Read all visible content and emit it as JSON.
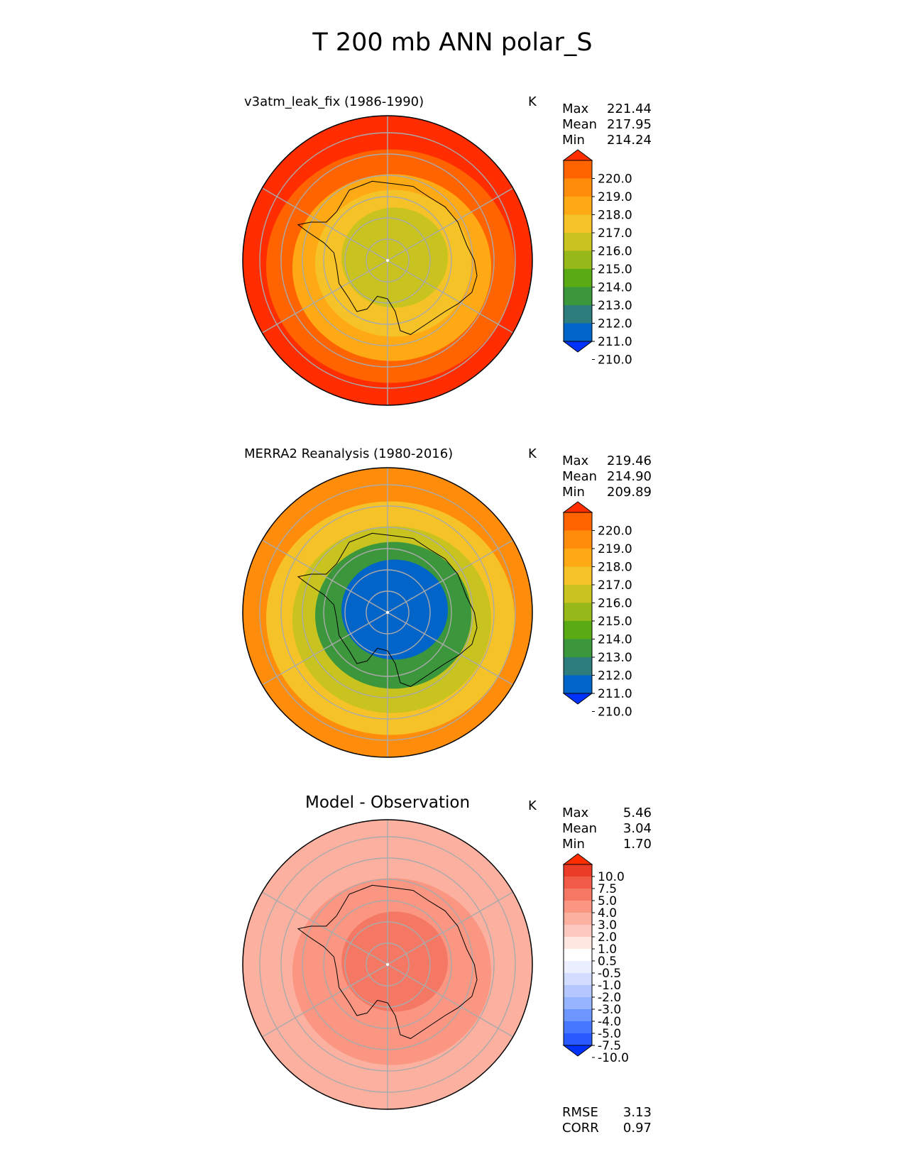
{
  "title": "T 200 mb ANN polar_S",
  "colors": {
    "temp_levels": [
      "#0032ff",
      "#0064c8",
      "#2d7d7d",
      "#3c963c",
      "#5aaa14",
      "#96b919",
      "#c8c31e",
      "#f5c328",
      "#ffaa14",
      "#ff8c0a",
      "#ff6400",
      "#ff2d00"
    ],
    "diff_levels": [
      "#0032ff",
      "#285aff",
      "#4678ff",
      "#6e96ff",
      "#96b4ff",
      "#b4c8ff",
      "#d2dcff",
      "#ebefff",
      "#ffffff",
      "#fee6e1",
      "#fdc8bd",
      "#fcb0a0",
      "#fa9682",
      "#f57864",
      "#f05a46",
      "#eb3c28",
      "#ff2d00"
    ],
    "coastline": "#000000",
    "grid": "#aaaaaa"
  },
  "panels": [
    {
      "title": "v3atm_leak_fix (1986-1990)",
      "units": "K",
      "stats": [
        {
          "label": "Max",
          "value": "221.44"
        },
        {
          "label": "Mean",
          "value": "217.95"
        },
        {
          "label": "Min",
          "value": "214.24"
        }
      ],
      "colorbar_ticks": [
        "220.0",
        "219.0",
        "218.0",
        "217.0",
        "216.0",
        "215.0",
        "214.0",
        "213.0",
        "212.0",
        "211.0",
        "210.0"
      ]
    },
    {
      "title": "MERRA2 Reanalysis (1980-2016)",
      "units": "K",
      "stats": [
        {
          "label": "Max",
          "value": "219.46"
        },
        {
          "label": "Mean",
          "value": "214.90"
        },
        {
          "label": "Min",
          "value": "209.89"
        }
      ],
      "colorbar_ticks": [
        "220.0",
        "219.0",
        "218.0",
        "217.0",
        "216.0",
        "215.0",
        "214.0",
        "213.0",
        "212.0",
        "211.0",
        "210.0"
      ]
    },
    {
      "title": "Model - Observation",
      "units": "K",
      "stats": [
        {
          "label": "Max",
          "value": "5.46"
        },
        {
          "label": "Mean",
          "value": "3.04"
        },
        {
          "label": "Min",
          "value": "1.70"
        }
      ],
      "colorbar_ticks": [
        "10.0",
        "7.5",
        "5.0",
        "4.0",
        "3.0",
        "2.0",
        "1.0",
        "0.5",
        "-0.5",
        "-1.0",
        "-2.0",
        "-3.0",
        "-4.0",
        "-5.0",
        "-7.5",
        "-10.0"
      ],
      "metrics": [
        {
          "label": "RMSE",
          "value": "3.13"
        },
        {
          "label": "CORR",
          "value": "0.97"
        }
      ]
    }
  ],
  "chart_data": [
    {
      "type": "heatmap",
      "projection": "south-polar-stereographic",
      "title": "v3atm_leak_fix (1986-1990)",
      "units": "K",
      "levels": [
        209,
        210,
        211,
        212,
        213,
        214,
        215,
        216,
        217,
        218,
        219,
        220,
        221
      ],
      "field_rings": [
        {
          "ring": "pole",
          "value": 215.5
        },
        {
          "ring": "interior",
          "value": 215.2
        },
        {
          "ring": "coast",
          "value": 216.3
        },
        {
          "ring": "50S",
          "value": 217.5
        },
        {
          "ring": "outer",
          "value": 219.5
        },
        {
          "ring": "edge",
          "value": 220.5
        }
      ]
    },
    {
      "type": "heatmap",
      "projection": "south-polar-stereographic",
      "title": "MERRA2 Reanalysis (1980-2016)",
      "units": "K",
      "levels": [
        209,
        210,
        211,
        212,
        213,
        214,
        215,
        216,
        217,
        218,
        219,
        220,
        221
      ],
      "field_rings": [
        {
          "ring": "pole",
          "value": 210.0
        },
        {
          "ring": "interior",
          "value": 210.5
        },
        {
          "ring": "coast",
          "value": 212.5
        },
        {
          "ring": "50S",
          "value": 215.0
        },
        {
          "ring": "outer",
          "value": 216.5
        },
        {
          "ring": "edge",
          "value": 218.0
        }
      ]
    },
    {
      "type": "heatmap",
      "projection": "south-polar-stereographic",
      "title": "Model - Observation",
      "units": "K",
      "levels": [
        -12.5,
        -10.0,
        -7.5,
        -5.0,
        -4.0,
        -3.0,
        -2.0,
        -1.0,
        -0.5,
        0.5,
        1.0,
        2.0,
        3.0,
        4.0,
        5.0,
        7.5,
        10.0,
        12.5
      ],
      "field_rings": [
        {
          "ring": "pole",
          "value": 4.5
        },
        {
          "ring": "interior",
          "value": 4.0
        },
        {
          "ring": "coast",
          "value": 3.5
        },
        {
          "ring": "50S",
          "value": 3.0
        },
        {
          "ring": "outer",
          "value": 2.5
        },
        {
          "ring": "edge",
          "value": 2.5
        }
      ]
    }
  ]
}
